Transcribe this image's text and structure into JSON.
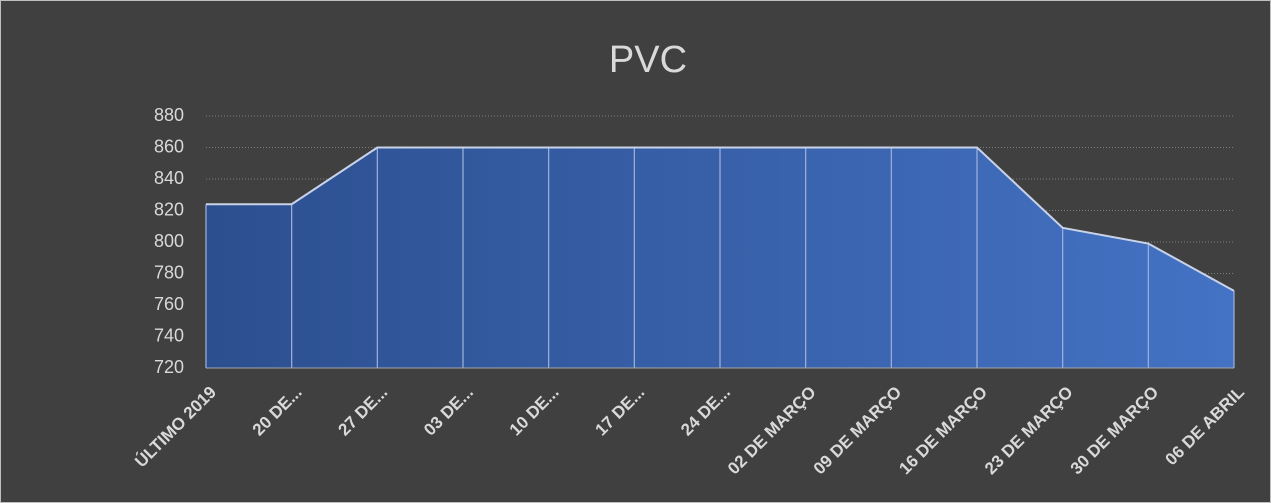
{
  "chart_data": {
    "type": "area",
    "title": "PVC",
    "categories": [
      "ÚLTIMO 2019",
      "20 DE...",
      "27 DE...",
      "03 DE...",
      "10 DE...",
      "17 DE...",
      "24 DE...",
      "02 DE MARÇO",
      "09 DE MARÇO",
      "16 DE MARÇO",
      "23 DE MARÇO",
      "30 DE MARÇO",
      "06 DE ABRIL"
    ],
    "values": [
      824,
      824,
      860,
      860,
      860,
      860,
      860,
      860,
      860,
      860,
      809,
      799,
      769
    ],
    "color": "#4472c4",
    "ylim": [
      720,
      880
    ],
    "yticks": [
      720,
      740,
      760,
      780,
      800,
      820,
      840,
      860,
      880
    ],
    "grid": true
  }
}
